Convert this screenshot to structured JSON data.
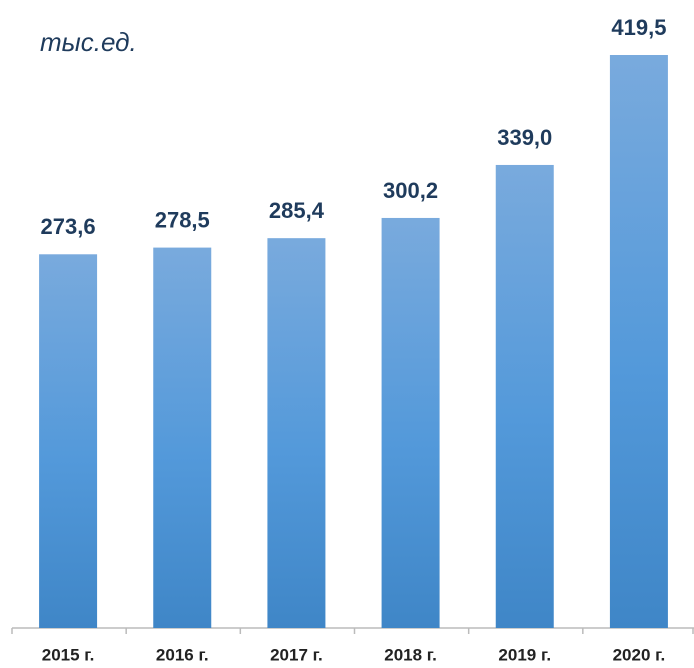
{
  "chart_data": {
    "type": "bar",
    "y_label": "тыс.ед.",
    "categories": [
      "2015 г.",
      "2016 г.",
      "2017 г.",
      "2018 г.",
      "2019 г.",
      "2020 г."
    ],
    "values": [
      273.6,
      278.5,
      285.4,
      300.2,
      339.0,
      419.5
    ],
    "value_labels": [
      "273,6",
      "278,5",
      "285,4",
      "300,2",
      "339,0",
      "419,5"
    ],
    "color": "#4a8fd0"
  }
}
